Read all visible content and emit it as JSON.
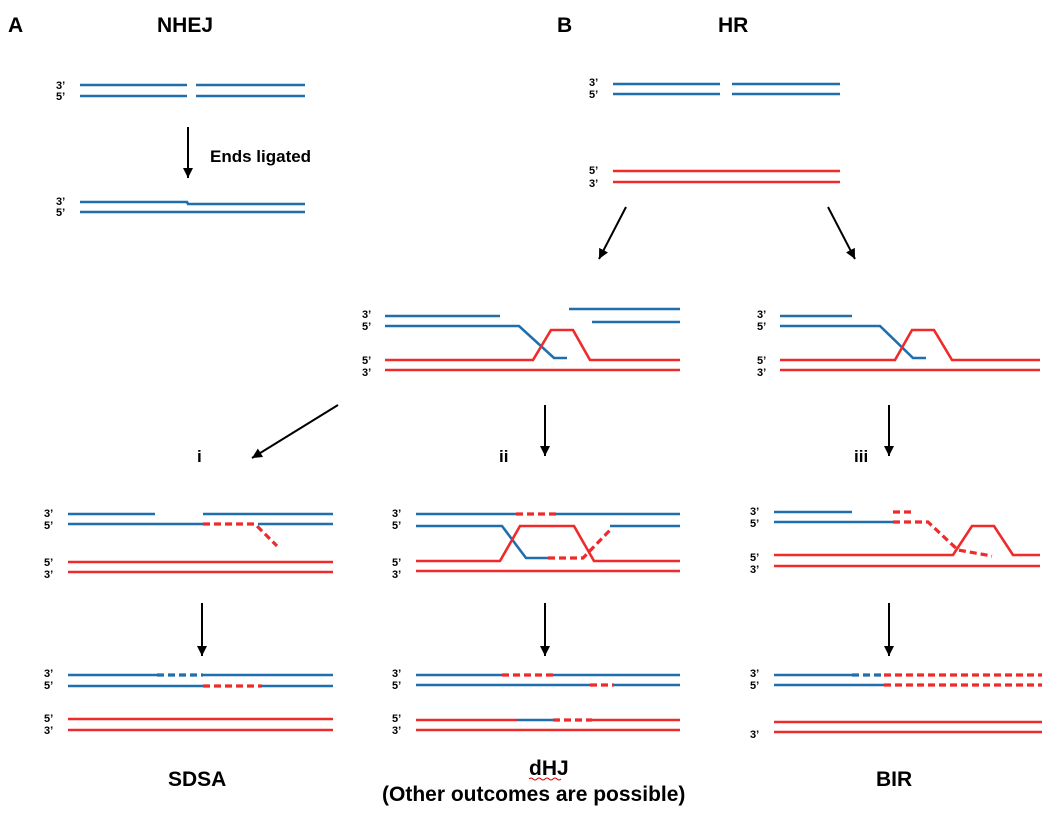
{
  "panels": {
    "A": {
      "letter": "A",
      "title": "NHEJ",
      "step_label": "Ends ligated"
    },
    "B": {
      "letter": "B",
      "title": "HR"
    }
  },
  "strand_ends": {
    "three_prime": "3’",
    "five_prime": "5’"
  },
  "pathways": {
    "i": {
      "numeral": "i",
      "name": "SDSA"
    },
    "ii": {
      "numeral": "ii",
      "name": "dHJ",
      "note": "(Other outcomes are possible)"
    },
    "iii": {
      "numeral": "iii",
      "name": "BIR"
    }
  },
  "colors": {
    "broken_dna": "#1f6fae",
    "template_dna": "#ee2a2a",
    "arrow": "#000000"
  }
}
